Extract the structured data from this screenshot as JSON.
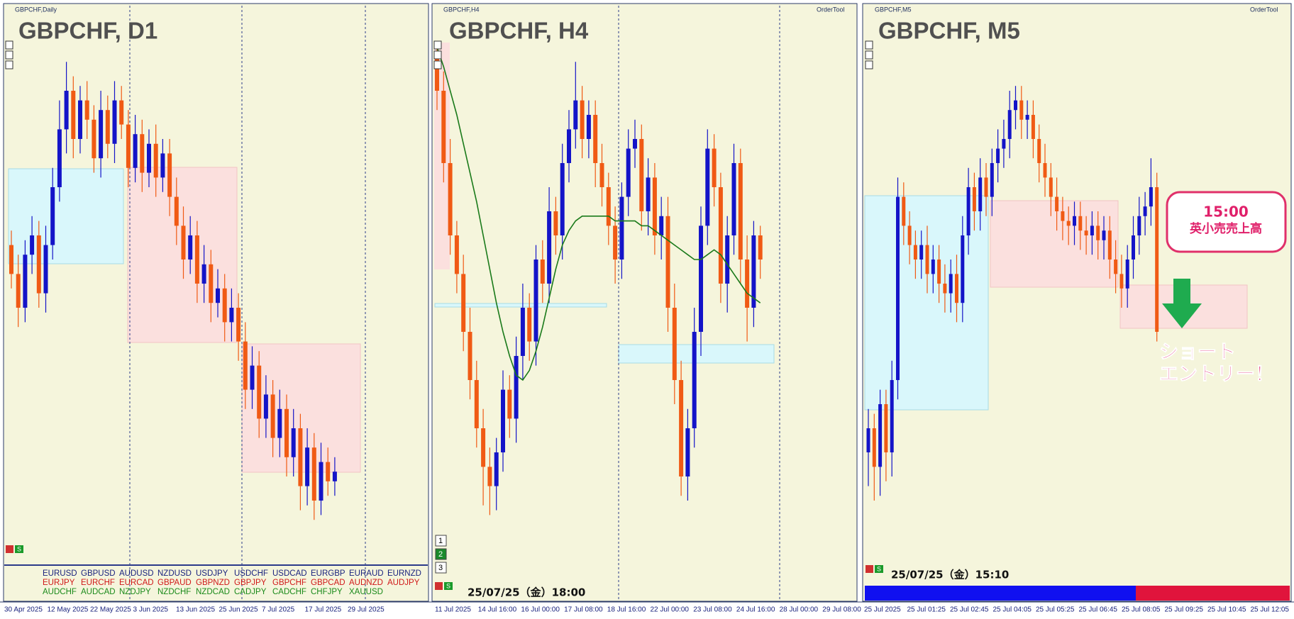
{
  "panes": [
    {
      "symbol_label": "GBPCHF,Daily",
      "title": "GBPCHF, D1",
      "ylim": [
        0,
        100
      ],
      "time_labels": [
        "30 Apr 2025",
        "12 May 2025",
        "22 May 2025",
        "3 Jun 2025",
        "13 Jun 2025",
        "25 Jun 2025",
        "7 Jul 2025",
        "17 Jul 2025",
        "29 Jul 2025"
      ],
      "candles": {
        "open": [
          58,
          52,
          45,
          56,
          60,
          48,
          58,
          70,
          82,
          90,
          80,
          88,
          84,
          76,
          86,
          79,
          88,
          83,
          74,
          81,
          73,
          79,
          72,
          77,
          68,
          62,
          55,
          60,
          50,
          54,
          46,
          49,
          42,
          45,
          38,
          28,
          33,
          22,
          27,
          18,
          24,
          14,
          20,
          8,
          16,
          5,
          13,
          9
        ],
        "high": [
          61,
          56,
          59,
          64,
          63,
          62,
          74,
          88,
          96,
          93,
          91,
          92,
          87,
          90,
          89,
          92,
          91,
          86,
          85,
          84,
          82,
          83,
          80,
          80,
          72,
          66,
          64,
          63,
          58,
          57,
          53,
          52,
          49,
          48,
          42,
          37,
          36,
          31,
          30,
          28,
          27,
          24,
          23,
          20,
          19,
          17,
          16,
          14
        ],
        "low": [
          49,
          41,
          42,
          52,
          45,
          44,
          55,
          67,
          77,
          76,
          77,
          80,
          73,
          72,
          76,
          75,
          80,
          70,
          71,
          69,
          70,
          68,
          69,
          64,
          58,
          51,
          52,
          46,
          46,
          42,
          43,
          38,
          38,
          34,
          24,
          24,
          18,
          18,
          14,
          14,
          10,
          10,
          3,
          4,
          1,
          2,
          6,
          6
        ],
        "close": [
          52,
          45,
          56,
          60,
          48,
          58,
          70,
          82,
          90,
          80,
          88,
          84,
          76,
          86,
          79,
          88,
          83,
          74,
          81,
          73,
          79,
          72,
          77,
          68,
          62,
          55,
          60,
          50,
          54,
          46,
          49,
          42,
          45,
          38,
          28,
          33,
          22,
          27,
          18,
          24,
          14,
          20,
          8,
          16,
          5,
          13,
          9,
          11
        ]
      }
    },
    {
      "symbol_label": "GBPCHF,H4",
      "title": "GBPCHF, H4",
      "order_tool": "OrderTool",
      "ylim": [
        0,
        100
      ],
      "buttons": [
        "1",
        "2",
        "3"
      ],
      "timestamp": "25/07/25（金）18:00",
      "time_labels": [
        "11 Jul 2025",
        "14 Jul 16:00",
        "16 Jul 00:00",
        "17 Jul 08:00",
        "18 Jul 16:00",
        "22 Jul 00:00",
        "23 Jul 08:00",
        "24 Jul 16:00",
        "28 Jul 00:00",
        "29 Jul 08:00"
      ],
      "candles": {
        "open": [
          98,
          90,
          75,
          60,
          52,
          40,
          30,
          20,
          12,
          8,
          15,
          28,
          22,
          35,
          45,
          38,
          55,
          50,
          65,
          60,
          75,
          82,
          88,
          80,
          85,
          75,
          70,
          62,
          55,
          68,
          78,
          80,
          65,
          72,
          60,
          64,
          45,
          30,
          10,
          20,
          40,
          62,
          78,
          70,
          50,
          60,
          75,
          55,
          45,
          60
        ],
        "high": [
          100,
          94,
          80,
          63,
          56,
          45,
          34,
          24,
          16,
          18,
          32,
          31,
          39,
          50,
          48,
          58,
          59,
          70,
          68,
          79,
          86,
          96,
          91,
          88,
          88,
          79,
          73,
          66,
          71,
          82,
          84,
          83,
          76,
          75,
          68,
          68,
          50,
          34,
          24,
          45,
          66,
          82,
          81,
          73,
          64,
          79,
          78,
          60,
          63,
          62
        ],
        "low": [
          86,
          71,
          56,
          48,
          36,
          26,
          16,
          4,
          2,
          3,
          11,
          18,
          17,
          30,
          34,
          33,
          46,
          46,
          56,
          55,
          71,
          78,
          76,
          76,
          70,
          66,
          58,
          50,
          51,
          64,
          74,
          61,
          60,
          56,
          55,
          40,
          25,
          6,
          5,
          16,
          35,
          58,
          66,
          46,
          44,
          56,
          50,
          38,
          41,
          51
        ],
        "close": [
          90,
          75,
          60,
          52,
          40,
          30,
          20,
          12,
          8,
          15,
          28,
          22,
          35,
          45,
          38,
          55,
          50,
          65,
          60,
          75,
          82,
          88,
          80,
          85,
          75,
          70,
          62,
          55,
          68,
          78,
          80,
          65,
          72,
          60,
          64,
          45,
          30,
          10,
          20,
          40,
          62,
          78,
          70,
          50,
          60,
          75,
          55,
          45,
          60,
          55
        ]
      },
      "moving_average": [
        99,
        95,
        90,
        85,
        79,
        73,
        67,
        60,
        53,
        46,
        40,
        35,
        31,
        30,
        32,
        36,
        41,
        47,
        53,
        58,
        61,
        63,
        64,
        64,
        64,
        64,
        64,
        63,
        63,
        63,
        63,
        62,
        62,
        61,
        60,
        59,
        58,
        57,
        56,
        55,
        55,
        56,
        57,
        56,
        54,
        52,
        50,
        48,
        47,
        46
      ]
    },
    {
      "symbol_label": "GBPCHF,M5",
      "title": "GBPCHF, M5",
      "order_tool": "OrderTool",
      "ylim": [
        0,
        100
      ],
      "timestamp": "25/07/25（金）15:10",
      "callout": {
        "time": "15:00",
        "event": "英小売売上高"
      },
      "annotation": [
        "ショート",
        "エントリー！"
      ],
      "time_labels": [
        "25 Jul 2025",
        "25 Jul 01:25",
        "25 Jul 02:45",
        "25 Jul 04:05",
        "25 Jul 05:25",
        "25 Jul 06:45",
        "25 Jul 08:05",
        "25 Jul 09:25",
        "25 Jul 10:45",
        "25 Jul 12:05"
      ],
      "candles": {
        "open": [
          15,
          20,
          12,
          25,
          15,
          30,
          68,
          62,
          58,
          55,
          58,
          52,
          55,
          50,
          48,
          52,
          46,
          60,
          70,
          65,
          72,
          68,
          75,
          78,
          80,
          86,
          88,
          84,
          85,
          80,
          75,
          72,
          68,
          65,
          63,
          62,
          64,
          61,
          60,
          62,
          59,
          61,
          55,
          52,
          49,
          55,
          60,
          64,
          66,
          70
        ],
        "high": [
          24,
          23,
          28,
          28,
          34,
          72,
          71,
          65,
          61,
          61,
          62,
          58,
          58,
          54,
          55,
          56,
          64,
          74,
          73,
          76,
          75,
          78,
          82,
          84,
          90,
          91,
          91,
          88,
          88,
          83,
          79,
          75,
          72,
          68,
          66,
          67,
          67,
          64,
          65,
          65,
          64,
          64,
          59,
          56,
          58,
          64,
          68,
          69,
          76,
          73
        ],
        "low": [
          8,
          5,
          6,
          9,
          10,
          26,
          58,
          54,
          51,
          51,
          48,
          48,
          46,
          44,
          44,
          42,
          42,
          56,
          61,
          61,
          64,
          64,
          71,
          74,
          76,
          82,
          80,
          80,
          76,
          71,
          68,
          64,
          61,
          59,
          58,
          58,
          57,
          56,
          56,
          55,
          55,
          51,
          48,
          45,
          45,
          51,
          56,
          60,
          62,
          38
        ],
        "close": [
          20,
          12,
          25,
          15,
          30,
          68,
          62,
          58,
          55,
          58,
          52,
          55,
          50,
          48,
          52,
          46,
          60,
          70,
          65,
          72,
          68,
          75,
          78,
          80,
          86,
          88,
          84,
          85,
          80,
          75,
          72,
          68,
          65,
          63,
          62,
          64,
          61,
          60,
          62,
          59,
          61,
          55,
          52,
          49,
          55,
          60,
          64,
          66,
          70,
          40
        ]
      }
    }
  ],
  "symbol_grid": [
    [
      "EURUSD",
      "GBPUSD",
      "AUDUSD",
      "NZDUSD",
      "USDJPY",
      "USDCHF",
      "USDCAD",
      "EURGBP",
      "EURAUD",
      "EURNZD"
    ],
    [
      "EURJPY",
      "EURCHF",
      "EURCAD",
      "GBPAUD",
      "GBPNZD",
      "GBPJPY",
      "GBPCHF",
      "GBPCAD",
      "AUDNZD",
      "AUDJPY"
    ],
    [
      "AUDCHF",
      "AUDCAD",
      "NZDJPY",
      "NZDCHF",
      "NZDCAD",
      "CADJPY",
      "CADCHF",
      "CHFJPY",
      "XAUUSD"
    ]
  ],
  "s_button": "S"
}
